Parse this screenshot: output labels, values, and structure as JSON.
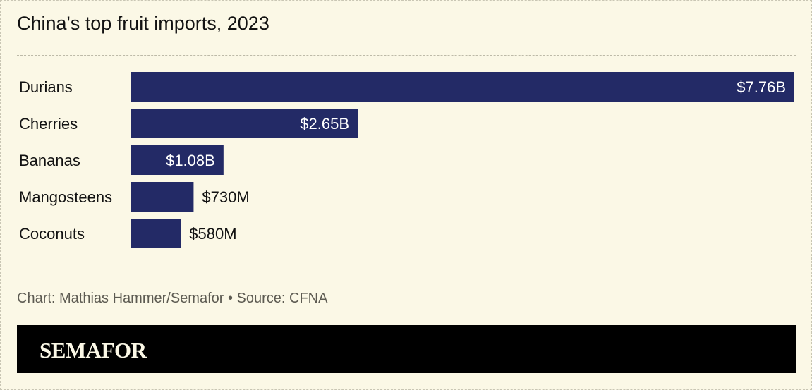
{
  "title": "China's top fruit imports, 2023",
  "source": "Chart: Mathias Hammer/Semafor • Source: CFNA",
  "brand": "SEMAFOR",
  "colors": {
    "background": "#fbf8e6",
    "bar": "#232a66",
    "label_inside": "#ffffff",
    "label_outside": "#121212",
    "brand_bar": "#000000"
  },
  "chart_data": {
    "type": "bar",
    "orientation": "horizontal",
    "title": "China's top fruit imports, 2023",
    "categories": [
      "Durians",
      "Cherries",
      "Bananas",
      "Mangosteens",
      "Coconuts"
    ],
    "values": [
      7.76,
      2.65,
      1.08,
      0.73,
      0.58
    ],
    "value_labels": [
      "$7.76B",
      "$2.65B",
      "$1.08B",
      "$730M",
      "$580M"
    ],
    "unit": "billion USD",
    "xlim": [
      0,
      7.76
    ],
    "grid": false,
    "legend": "none"
  }
}
